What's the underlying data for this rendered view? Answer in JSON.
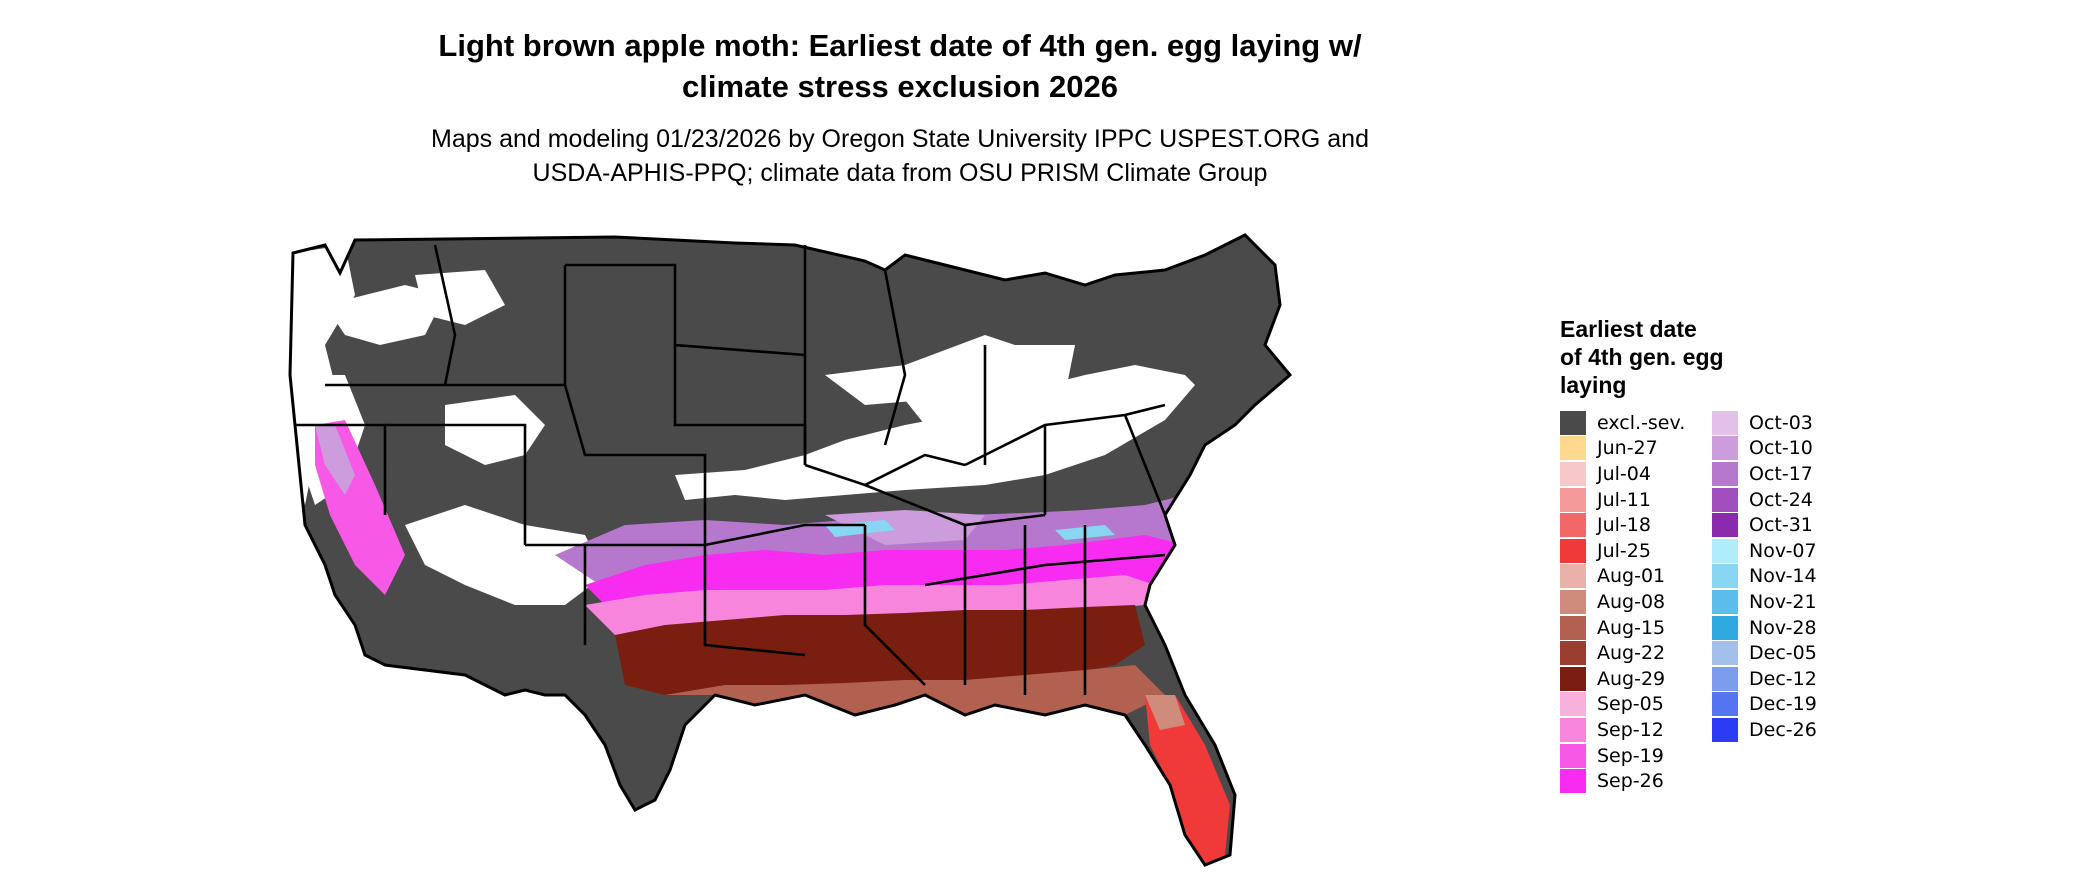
{
  "title": "Light brown apple moth: Earliest date of 4th gen. egg laying w/\nclimate stress exclusion 2026",
  "subtitle": "Maps and modeling 01/23/2026 by Oregon State University IPPC USPEST.ORG and\nUSDA-APHIS-PPQ; climate data from OSU PRISM Climate Group",
  "legend": {
    "title": "Earliest date\nof 4th gen. egg\nlaying",
    "column1": [
      {
        "label": "excl.-sev.",
        "color": "#4a4a4a"
      },
      {
        "label": "Jun-27",
        "color": "#ffd890"
      },
      {
        "label": "Jul-04",
        "color": "#f6c8c8"
      },
      {
        "label": "Jul-11",
        "color": "#f49a9a"
      },
      {
        "label": "Jul-18",
        "color": "#f26868"
      },
      {
        "label": "Jul-25",
        "color": "#f03a3a"
      },
      {
        "label": "Aug-01",
        "color": "#e8b2a8"
      },
      {
        "label": "Aug-08",
        "color": "#cf8c7c"
      },
      {
        "label": "Aug-15",
        "color": "#b2604f"
      },
      {
        "label": "Aug-22",
        "color": "#9a3e30"
      },
      {
        "label": "Aug-29",
        "color": "#7a1e10"
      },
      {
        "label": "Sep-05",
        "color": "#f8b0dc"
      },
      {
        "label": "Sep-12",
        "color": "#f885dc"
      },
      {
        "label": "Sep-19",
        "color": "#f858e6"
      },
      {
        "label": "Sep-26",
        "color": "#f82cf0"
      }
    ],
    "column2": [
      {
        "label": "Oct-03",
        "color": "#e2c0ea"
      },
      {
        "label": "Oct-10",
        "color": "#cc9cdc"
      },
      {
        "label": "Oct-17",
        "color": "#b678cc"
      },
      {
        "label": "Oct-24",
        "color": "#a050bc"
      },
      {
        "label": "Oct-31",
        "color": "#8a2aac"
      },
      {
        "label": "Nov-07",
        "color": "#b0ecfa"
      },
      {
        "label": "Nov-14",
        "color": "#88d6f2"
      },
      {
        "label": "Nov-21",
        "color": "#5cbcea"
      },
      {
        "label": "Nov-28",
        "color": "#30a8e0"
      },
      {
        "label": "Dec-05",
        "color": "#a4c0ea"
      },
      {
        "label": "Dec-12",
        "color": "#7c9cee"
      },
      {
        "label": "Dec-19",
        "color": "#5474f0"
      },
      {
        "label": "Dec-26",
        "color": "#2c3cf2"
      }
    ]
  },
  "map_colors": {
    "background": "#ffffff",
    "borders": "#000000"
  }
}
